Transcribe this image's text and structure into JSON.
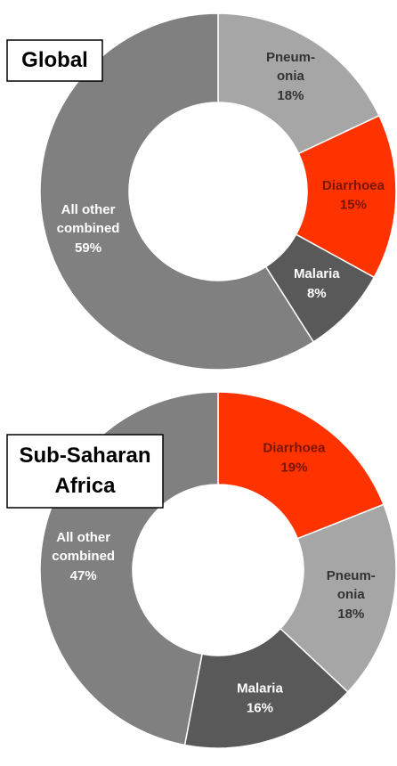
{
  "chart_data": [
    {
      "type": "donut",
      "title": "Global",
      "categories": [
        "Pneum-\nonia",
        "Diarrhoea",
        "Malaria",
        "All other\ncombined"
      ],
      "values": [
        18,
        15,
        8,
        59
      ],
      "value_labels": [
        "18%",
        "15%",
        "8%",
        "59%"
      ],
      "colors": [
        "#a6a6a6",
        "#ff3300",
        "#595959",
        "#808080"
      ]
    },
    {
      "type": "donut",
      "title": "Sub-Saharan\nAfrica",
      "categories": [
        "Diarrhoea",
        "Pneum-\nonia",
        "Malaria",
        "All other\ncombined"
      ],
      "values": [
        19,
        18,
        16,
        47
      ],
      "value_labels": [
        "19%",
        "18%",
        "16%",
        "47%"
      ],
      "colors": [
        "#ff3300",
        "#a6a6a6",
        "#595959",
        "#808080"
      ]
    }
  ]
}
